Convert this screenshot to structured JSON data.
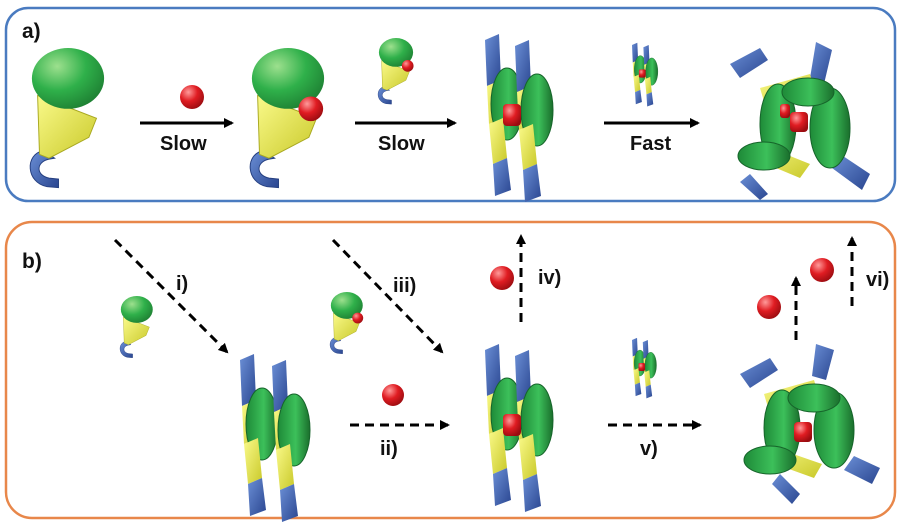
{
  "panel_a": {
    "label": "a)",
    "border_color": "#4a7bc0",
    "steps": [
      {
        "label": "Slow",
        "arrow_style": "solid"
      },
      {
        "label": "Slow",
        "arrow_style": "solid"
      },
      {
        "label": "Fast",
        "arrow_style": "solid"
      }
    ]
  },
  "panel_b": {
    "label": "b)",
    "border_color": "#e8874a",
    "steps": [
      {
        "label": "i)",
        "arrow_style": "dashed"
      },
      {
        "label": "ii)",
        "arrow_style": "dashed"
      },
      {
        "label": "iii)",
        "arrow_style": "dashed"
      },
      {
        "label": "iv)",
        "arrow_style": "dashed"
      },
      {
        "label": "v)",
        "arrow_style": "dashed"
      },
      {
        "label": "vi)",
        "arrow_style": "dashed"
      }
    ]
  },
  "colors": {
    "ligand_head": "#2fb04a",
    "ligand_linker": "#e2e23a",
    "ligand_tail": "#3b5fae",
    "metal_ion": "#d8141c",
    "arrow": "#000000"
  },
  "icons": [
    "ligand-monomer-icon",
    "metal-ion-icon",
    "dimer-icon",
    "helicate-icon",
    "trimer-icon"
  ]
}
